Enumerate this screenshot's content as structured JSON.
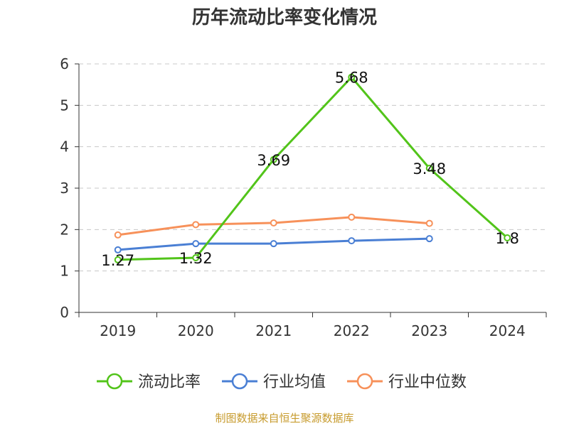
{
  "chart_data": {
    "type": "line",
    "title": "历年流动比率变化情况",
    "categories": [
      "2019",
      "2020",
      "2021",
      "2022",
      "2023",
      "2024"
    ],
    "ylim": [
      0,
      6
    ],
    "yticks": [
      "0",
      "1",
      "2",
      "3",
      "4",
      "5",
      "6"
    ],
    "grid": true,
    "legend_position": "bottom",
    "series": [
      {
        "name": "流动比率",
        "color": "#52c41a",
        "values": [
          1.27,
          1.32,
          3.69,
          5.68,
          3.48,
          1.8
        ],
        "labels": [
          "1.27",
          "1.32",
          "3.69",
          "5.68",
          "3.48",
          "1.8"
        ]
      },
      {
        "name": "行业均值",
        "color": "#4a7fd4",
        "values": [
          1.51,
          1.66,
          1.66,
          1.73,
          1.78,
          null
        ]
      },
      {
        "name": "行业中位数",
        "color": "#f7915a",
        "values": [
          1.87,
          2.12,
          2.16,
          2.3,
          2.15,
          null
        ]
      }
    ]
  },
  "source_note": "制图数据来自恒生聚源数据库"
}
